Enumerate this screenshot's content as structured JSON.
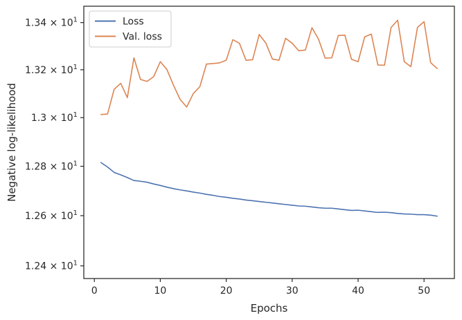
{
  "chart_data": {
    "type": "line",
    "xlabel": "Epochs",
    "ylabel": "Negative log-likelihood",
    "xlim": [
      -1.6,
      54.6
    ],
    "ylim": [
      12.35,
      13.47
    ],
    "y_scale": "log",
    "grid": false,
    "legend_position": "top-left",
    "x_ticks": [
      0,
      10,
      20,
      30,
      40,
      50
    ],
    "x_tick_labels": [
      "0",
      "10",
      "20",
      "30",
      "40",
      "50"
    ],
    "y_ticks": [
      12.4,
      12.6,
      12.8,
      13.0,
      13.2,
      13.4
    ],
    "y_tick_labels": [
      "1.24 × 10",
      "1.26 × 10",
      "1.28 × 10",
      "1.3 × 10",
      "1.32 × 10",
      "1.34 × 10"
    ],
    "y_tick_exponent": "1",
    "x": [
      1,
      2,
      3,
      4,
      5,
      6,
      7,
      8,
      9,
      10,
      11,
      12,
      13,
      14,
      15,
      16,
      17,
      18,
      19,
      20,
      21,
      22,
      23,
      24,
      25,
      26,
      27,
      28,
      29,
      30,
      31,
      32,
      33,
      34,
      35,
      36,
      37,
      38,
      39,
      40,
      41,
      42,
      43,
      44,
      45,
      46,
      47,
      48,
      49,
      50,
      51,
      52
    ],
    "series": [
      {
        "name": "Loss",
        "color": "#4c72b0",
        "values": [
          12.815,
          12.797,
          12.775,
          12.765,
          12.754,
          12.742,
          12.739,
          12.735,
          12.728,
          12.722,
          12.715,
          12.709,
          12.704,
          12.7,
          12.695,
          12.691,
          12.686,
          12.682,
          12.677,
          12.674,
          12.67,
          12.667,
          12.663,
          12.66,
          12.657,
          12.654,
          12.651,
          12.648,
          12.645,
          12.642,
          12.639,
          12.638,
          12.635,
          12.632,
          12.63,
          12.63,
          12.627,
          12.624,
          12.621,
          12.622,
          12.619,
          12.616,
          12.613,
          12.614,
          12.612,
          12.609,
          12.607,
          12.606,
          12.604,
          12.604,
          12.602,
          12.598
        ]
      },
      {
        "name": "Val. loss",
        "color": "#dd8452",
        "values": [
          13.013,
          13.015,
          13.118,
          13.143,
          13.083,
          13.25,
          13.159,
          13.151,
          13.171,
          13.234,
          13.201,
          13.135,
          13.076,
          13.044,
          13.1,
          13.129,
          13.224,
          13.226,
          13.229,
          13.24,
          13.327,
          13.312,
          13.24,
          13.242,
          13.349,
          13.313,
          13.245,
          13.24,
          13.333,
          13.312,
          13.28,
          13.283,
          13.378,
          13.329,
          13.249,
          13.25,
          13.345,
          13.346,
          13.244,
          13.234,
          13.339,
          13.351,
          13.22,
          13.219,
          13.379,
          13.41,
          13.234,
          13.213,
          13.379,
          13.404,
          13.23,
          13.205
        ]
      }
    ]
  }
}
